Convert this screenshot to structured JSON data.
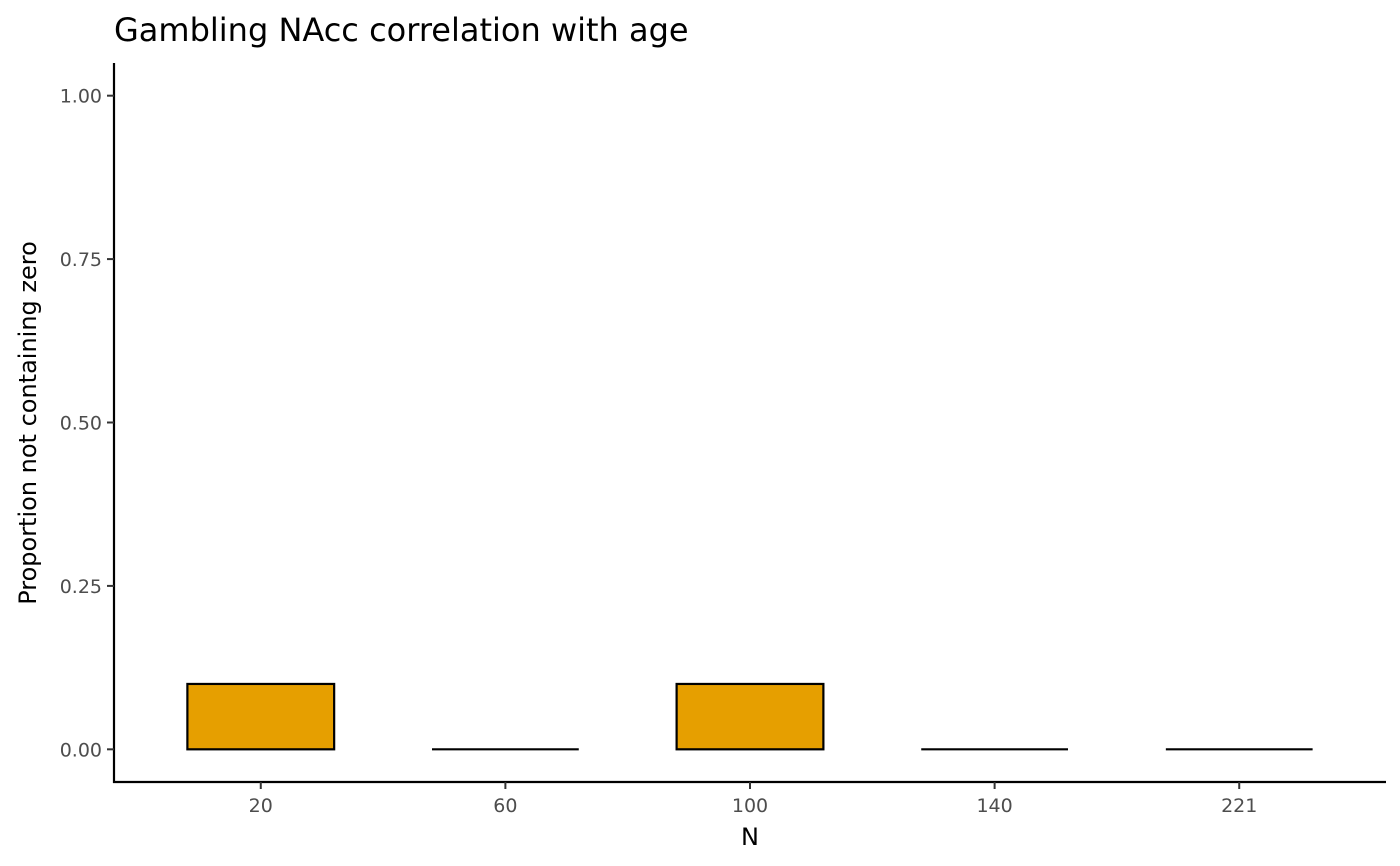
{
  "chart_data": {
    "type": "bar",
    "title": "Gambling NAcc correlation with age",
    "xlabel": "N",
    "ylabel": "Proportion not containing zero",
    "categories": [
      "20",
      "60",
      "100",
      "140",
      "221"
    ],
    "values": [
      0.1,
      0.0,
      0.1,
      0.0,
      0.0
    ],
    "ylim": [
      -0.05,
      1.05
    ],
    "yticks": [
      0.0,
      0.25,
      0.5,
      0.75,
      1.0
    ],
    "ytick_labels": [
      "0.00",
      "0.25",
      "0.50",
      "0.75",
      "1.00"
    ],
    "bar_fill": "#E69F00",
    "bar_outline": "#000000",
    "grid": false,
    "legend": "none"
  }
}
